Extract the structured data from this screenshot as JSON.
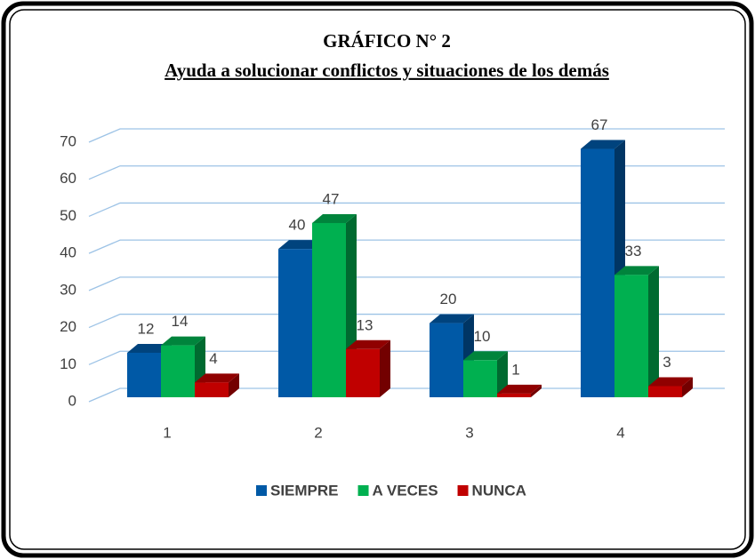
{
  "chart_data": {
    "type": "bar3d",
    "title": "GRÁFICO N° 2",
    "subtitle": "Ayuda a solucionar conflictos y situaciones de los demás",
    "categories": [
      "1",
      "2",
      "3",
      "4"
    ],
    "series": [
      {
        "name": "SIEMPRE",
        "color": "#0059a6",
        "values": [
          12,
          40,
          20,
          67
        ]
      },
      {
        "name": "A VECES",
        "color": "#00b050",
        "values": [
          14,
          47,
          10,
          33
        ]
      },
      {
        "name": "NUNCA",
        "color": "#c00000",
        "values": [
          4,
          13,
          1,
          3
        ]
      }
    ],
    "ylim": [
      0,
      70
    ],
    "yticks": [
      0,
      10,
      20,
      30,
      40,
      50,
      60,
      70
    ],
    "grid": true,
    "legend": "bottom"
  }
}
